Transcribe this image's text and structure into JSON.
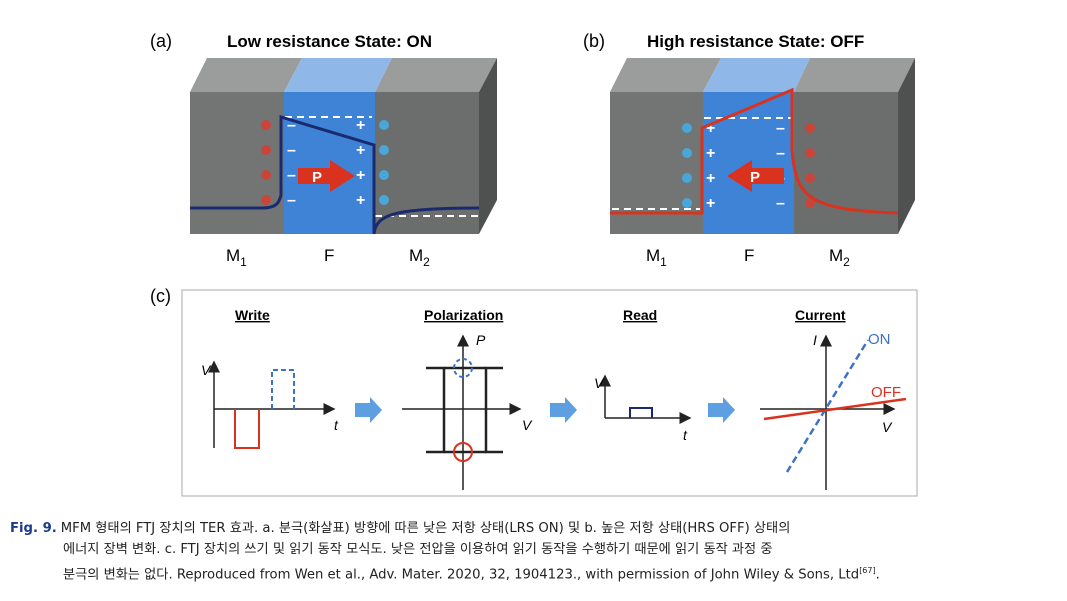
{
  "panel_a": {
    "letter": "(a)",
    "title": "Low resistance State: ON",
    "arrow_label": "P",
    "layer_labels": [
      "M",
      "F",
      "M"
    ],
    "layer_subs": [
      "1",
      "",
      "2"
    ]
  },
  "panel_b": {
    "letter": "(b)",
    "title": "High resistance State: OFF",
    "arrow_label": "P",
    "layer_labels": [
      "M",
      "F",
      "M"
    ],
    "layer_subs": [
      "1",
      "",
      "2"
    ]
  },
  "panel_c": {
    "letter": "(c)",
    "steps": [
      "Write",
      "Polarization",
      "Read",
      "Current"
    ],
    "write_axes": {
      "y": "V",
      "x": "t"
    },
    "pol_axes": {
      "y": "P",
      "x": "V"
    },
    "read_axes": {
      "y": "V",
      "x": "t"
    },
    "current_axes": {
      "y": "I",
      "x": "V"
    },
    "on_label": "ON",
    "off_label": "OFF"
  },
  "colors": {
    "metal": "#6f7170",
    "ferro": "#3f83d6",
    "on_curve": "#1a2a6e",
    "off_curve": "#d9321f",
    "arrow_blue": "#5d9fe0",
    "on_line": "#3b73c4"
  },
  "caption": {
    "label": "Fig. 9.",
    "line1": "MFM 형태의 FTJ 장치의 TER 효과. a. 분극(화살표) 방향에 따른 낮은 저항 상태(LRS ON) 및 b. 높은 저항 상태(HRS OFF) 상태의",
    "line2": "에너지 장벽 변화. c. FTJ 장치의 쓰기 및 읽기 동작 모식도. 낮은 전압을 이용하여 읽기 동작을 수행하기 때문에 읽기 동작 과정 중",
    "line3": "분극의 변화는 없다. Reproduced from Wen et al., Adv. Mater. 2020, 32, 1904123., with permission of John Wiley & Sons, Ltd",
    "ref": "[67]",
    "end": "."
  }
}
